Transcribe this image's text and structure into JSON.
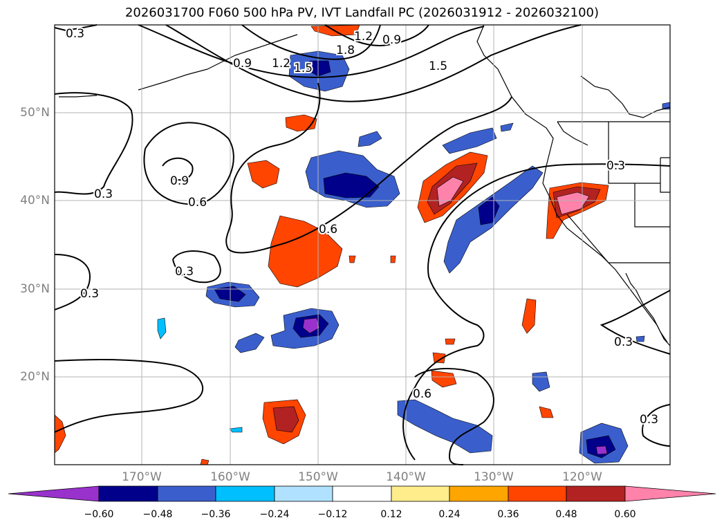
{
  "title": "2026031700 F060 500 hPa PV, IVT Landfall PC (2026031912 - 2026032100)",
  "lat_labels": [
    "50°N",
    "40°N",
    "30°N",
    "20°N"
  ],
  "lon_labels": [
    "170°W",
    "160°W",
    "150°W",
    "140°W",
    "130°W",
    "120°W"
  ],
  "contour_labels": [
    "0.3",
    "1.2",
    "0.9",
    "1.8",
    "0.9",
    "1.2",
    "1.5",
    "1.5",
    "0.9",
    "0.6",
    "0.3",
    "0.6",
    "0.3",
    "0.3",
    "0.6",
    "0.3",
    "0.3",
    "0.3"
  ],
  "colorbar": {
    "ticks": [
      "−0.60",
      "−0.48",
      "−0.36",
      "−0.24",
      "−0.12",
      "0.12",
      "0.24",
      "0.36",
      "0.48",
      "0.60"
    ],
    "colors": [
      "#9932cc",
      "#00008b",
      "#3a5fcd",
      "#00bfff",
      "#b0e2ff",
      "#ffffff",
      "#ffec8b",
      "#ffa500",
      "#ff4500",
      "#b22222",
      "#ff82ab"
    ]
  }
}
